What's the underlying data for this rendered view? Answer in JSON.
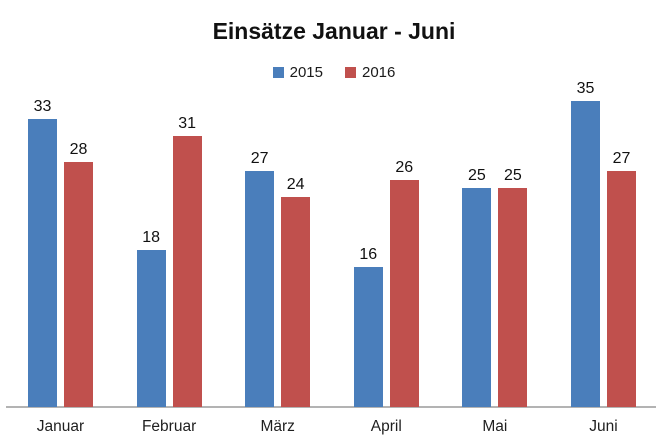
{
  "chart_data": {
    "type": "bar",
    "title": "Einsätze Januar - Juni",
    "categories": [
      "Januar",
      "Februar",
      "März",
      "April",
      "Mai",
      "Juni"
    ],
    "series": [
      {
        "name": "2015",
        "color": "#4a7ebb",
        "values": [
          33,
          18,
          27,
          16,
          25,
          35
        ]
      },
      {
        "name": "2016",
        "color": "#c0504d",
        "values": [
          28,
          31,
          24,
          26,
          25,
          27
        ]
      }
    ],
    "xlabel": "",
    "ylabel": "",
    "ylim": [
      0,
      35
    ],
    "grid": false,
    "legend_position": "top",
    "value_labels_shown": true,
    "axis_line_color": "#b3b3b3",
    "background_color": "#ffffff"
  }
}
